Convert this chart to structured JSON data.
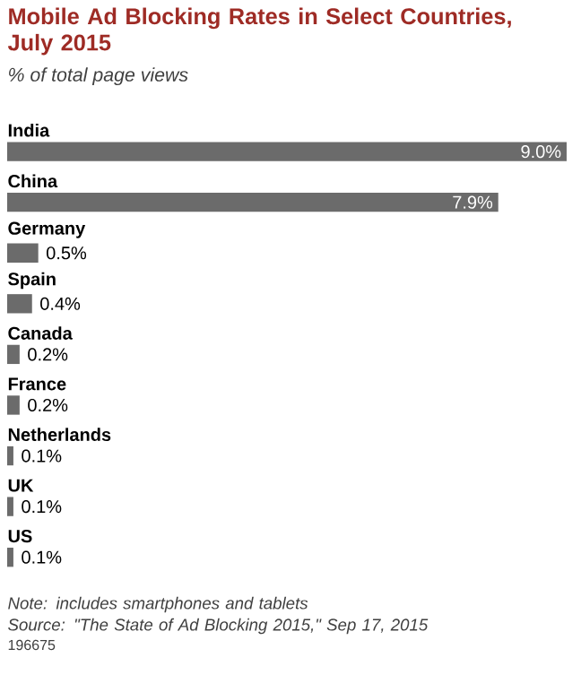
{
  "chart_data": {
    "type": "bar",
    "orientation": "horizontal",
    "title": "Mobile Ad Blocking Rates in Select Countries, July 2015",
    "subtitle": "% of total page views",
    "categories": [
      "India",
      "China",
      "Germany",
      "Spain",
      "Canada",
      "France",
      "Netherlands",
      "UK",
      "US"
    ],
    "values": [
      9.0,
      7.9,
      0.5,
      0.4,
      0.2,
      0.2,
      0.1,
      0.1,
      0.1
    ],
    "value_labels": [
      "9.0%",
      "7.9%",
      "0.5%",
      "0.4%",
      "0.2%",
      "0.2%",
      "0.1%",
      "0.1%",
      "0.1%"
    ],
    "color": "#6b6b6b",
    "annotations": [
      "Note: includes smartphones and tablets",
      "Source: \"The State of Ad Blocking 2015,\" Sep 17, 2015",
      "196675"
    ]
  }
}
